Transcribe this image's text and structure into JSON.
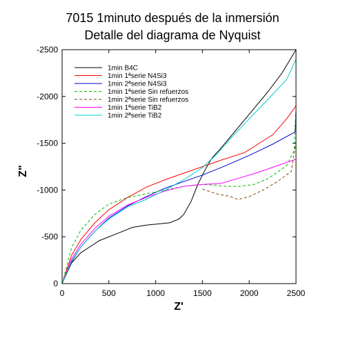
{
  "chart_data": {
    "type": "line",
    "title": [
      "7015 1minuto después de la inmersión",
      "Detalle del diagrama de Nyquist"
    ],
    "xlabel": "Z'",
    "ylabel": "Z\"",
    "xlim": [
      0,
      2500
    ],
    "ylim": [
      0,
      -2500
    ],
    "x_ticks": [
      0,
      500,
      1000,
      1500,
      2000,
      2500
    ],
    "y_ticks": [
      0,
      -500,
      -1000,
      -1500,
      -2000,
      -2500
    ],
    "x_tick_labels": [
      "0",
      "500",
      "1000",
      "1500",
      "2000",
      "2500"
    ],
    "y_tick_labels": [
      "0",
      "-500",
      "-1000",
      "-1500",
      "-2000",
      "-2500"
    ],
    "legend_position": "top-left",
    "series": [
      {
        "name": "1min B4C",
        "color": "#000000",
        "dash": "solid",
        "x": [
          0,
          100,
          200,
          400,
          600,
          750,
          900,
          1050,
          1150,
          1250,
          1300,
          1380,
          1450,
          1520,
          1600,
          1700,
          1850,
          2000,
          2200,
          2350,
          2500
        ],
        "y": [
          0,
          -220,
          -330,
          -460,
          -540,
          -600,
          -625,
          -640,
          -650,
          -690,
          -740,
          -880,
          -1060,
          -1200,
          -1340,
          -1450,
          -1630,
          -1810,
          -2050,
          -2250,
          -2500
        ]
      },
      {
        "name": "1min 1ªserie N4Si3",
        "color": "#ff0000",
        "dash": "solid",
        "x": [
          0,
          100,
          200,
          350,
          500,
          700,
          900,
          1100,
          1300,
          1500,
          1700,
          1950,
          2250,
          2400,
          2500
        ],
        "y": [
          0,
          -300,
          -470,
          -650,
          -790,
          -920,
          -1030,
          -1110,
          -1180,
          -1250,
          -1320,
          -1400,
          -1590,
          -1760,
          -1900
        ]
      },
      {
        "name": "1min 2ªserie N4Si3",
        "color": "#0000cc",
        "dash": "solid",
        "x": [
          0,
          100,
          200,
          350,
          500,
          700,
          900,
          1100,
          1300,
          1500,
          1750,
          2000,
          2250,
          2490,
          2500
        ],
        "y": [
          0,
          -230,
          -390,
          -560,
          -700,
          -830,
          -930,
          -1020,
          -1090,
          -1160,
          -1260,
          -1370,
          -1490,
          -1620,
          -1850
        ]
      },
      {
        "name": "1min 1ªserie Sin refuerzos",
        "color": "#00bb00",
        "dash": "dashed",
        "x": [
          0,
          100,
          200,
          350,
          500,
          700,
          900,
          1100,
          1300,
          1500,
          1650,
          1750,
          1900,
          2050,
          2200,
          2400,
          2480,
          2500
        ],
        "y": [
          0,
          -380,
          -570,
          -740,
          -850,
          -920,
          -960,
          -1000,
          -1040,
          -1060,
          -1050,
          -1040,
          -1040,
          -1060,
          -1120,
          -1260,
          -1420,
          -1850
        ]
      },
      {
        "name": "1min 2ªserie Sin refuerzos",
        "color": "#8b4500",
        "dash": "dashed",
        "x": [
          1500,
          1650,
          1800,
          1880,
          2000,
          2150,
          2300,
          2450,
          2500
        ],
        "y": [
          -1010,
          -960,
          -930,
          -900,
          -930,
          -1000,
          -1090,
          -1200,
          -1520
        ]
      },
      {
        "name": "1min 1ªserie TiB2",
        "color": "#ff00ff",
        "dash": "solid",
        "x": [
          0,
          100,
          200,
          350,
          500,
          700,
          900,
          1100,
          1300,
          1500,
          1700,
          1900,
          2100,
          2300,
          2500
        ],
        "y": [
          0,
          -260,
          -420,
          -590,
          -720,
          -840,
          -920,
          -990,
          -1040,
          -1060,
          -1070,
          -1130,
          -1190,
          -1260,
          -1330
        ]
      },
      {
        "name": "1min 2ªserie TiB2",
        "color": "#00cccc",
        "dash": "solid",
        "x": [
          0,
          100,
          200,
          350,
          500,
          700,
          900,
          1100,
          1300,
          1500,
          1650,
          1800,
          2000,
          2200,
          2400,
          2500
        ],
        "y": [
          0,
          -240,
          -390,
          -560,
          -690,
          -820,
          -900,
          -1000,
          -1110,
          -1240,
          -1380,
          -1550,
          -1760,
          -1970,
          -2180,
          -2400
        ]
      }
    ]
  }
}
